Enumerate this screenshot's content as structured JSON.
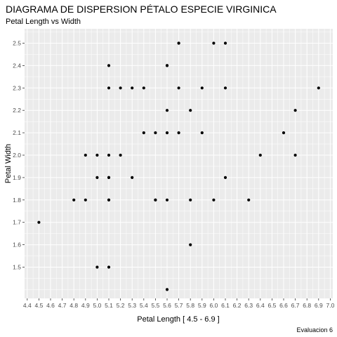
{
  "chart_data": {
    "type": "scatter",
    "title": "DIAGRAMA DE DISPERSION PÉTALO ESPECIE VIRGINICA",
    "subtitle": "Petal Length vs Width",
    "xlabel": "Petal Length [ 4.5 - 6.9 ]",
    "ylabel": "Petal Width",
    "caption": "Evaluacion 6",
    "xlim": [
      4.4,
      7.0
    ],
    "ylim": [
      1.4,
      2.5
    ],
    "x_ticks": [
      "4.4",
      "4.5",
      "4.6",
      "4.7",
      "4.8",
      "4.9",
      "5.0",
      "5.1",
      "5.2",
      "5.3",
      "5.4",
      "5.5",
      "5.6",
      "5.7",
      "5.8",
      "5.9",
      "6.0",
      "6.1",
      "6.2",
      "6.3",
      "6.4",
      "6.5",
      "6.6",
      "6.7",
      "6.8",
      "6.9",
      "7.0"
    ],
    "y_ticks": [
      "1.5",
      "1.6",
      "1.7",
      "1.8",
      "1.9",
      "2.0",
      "2.1",
      "2.2",
      "2.3",
      "2.4",
      "2.5"
    ],
    "grid": true,
    "colors": {
      "panel": "#ebebeb",
      "grid": "#ffffff",
      "point": "#000000"
    },
    "points": [
      {
        "x": 6.0,
        "y": 2.5
      },
      {
        "x": 5.1,
        "y": 1.9
      },
      {
        "x": 5.9,
        "y": 2.1
      },
      {
        "x": 5.6,
        "y": 1.8
      },
      {
        "x": 5.8,
        "y": 2.2
      },
      {
        "x": 6.6,
        "y": 2.1
      },
      {
        "x": 4.5,
        "y": 1.7
      },
      {
        "x": 6.3,
        "y": 1.8
      },
      {
        "x": 5.8,
        "y": 1.8
      },
      {
        "x": 6.1,
        "y": 2.5
      },
      {
        "x": 5.1,
        "y": 2.0
      },
      {
        "x": 5.3,
        "y": 1.9
      },
      {
        "x": 5.5,
        "y": 2.1
      },
      {
        "x": 5.0,
        "y": 2.0
      },
      {
        "x": 5.1,
        "y": 2.4
      },
      {
        "x": 5.3,
        "y": 2.3
      },
      {
        "x": 5.5,
        "y": 1.8
      },
      {
        "x": 6.7,
        "y": 2.2
      },
      {
        "x": 6.9,
        "y": 2.3
      },
      {
        "x": 5.0,
        "y": 1.5
      },
      {
        "x": 5.7,
        "y": 2.3
      },
      {
        "x": 4.9,
        "y": 2.0
      },
      {
        "x": 6.7,
        "y": 2.0
      },
      {
        "x": 4.9,
        "y": 1.8
      },
      {
        "x": 5.7,
        "y": 2.1
      },
      {
        "x": 6.0,
        "y": 1.8
      },
      {
        "x": 4.8,
        "y": 1.8
      },
      {
        "x": 5.6,
        "y": 2.1
      },
      {
        "x": 5.8,
        "y": 1.6
      },
      {
        "x": 6.1,
        "y": 1.9
      },
      {
        "x": 6.4,
        "y": 2.0
      },
      {
        "x": 5.6,
        "y": 2.2
      },
      {
        "x": 5.1,
        "y": 1.5
      },
      {
        "x": 5.6,
        "y": 1.4
      },
      {
        "x": 6.1,
        "y": 2.3
      },
      {
        "x": 5.6,
        "y": 2.4
      },
      {
        "x": 5.5,
        "y": 1.8
      },
      {
        "x": 5.4,
        "y": 2.1
      },
      {
        "x": 5.6,
        "y": 2.4
      },
      {
        "x": 5.1,
        "y": 2.3
      },
      {
        "x": 5.1,
        "y": 1.9
      },
      {
        "x": 5.9,
        "y": 2.3
      },
      {
        "x": 5.7,
        "y": 2.5
      },
      {
        "x": 5.2,
        "y": 2.3
      },
      {
        "x": 5.0,
        "y": 1.9
      },
      {
        "x": 5.2,
        "y": 2.0
      },
      {
        "x": 5.4,
        "y": 2.3
      },
      {
        "x": 5.1,
        "y": 1.8
      },
      {
        "x": 5.7,
        "y": 2.5
      },
      {
        "x": 5.1,
        "y": 1.8
      }
    ]
  }
}
